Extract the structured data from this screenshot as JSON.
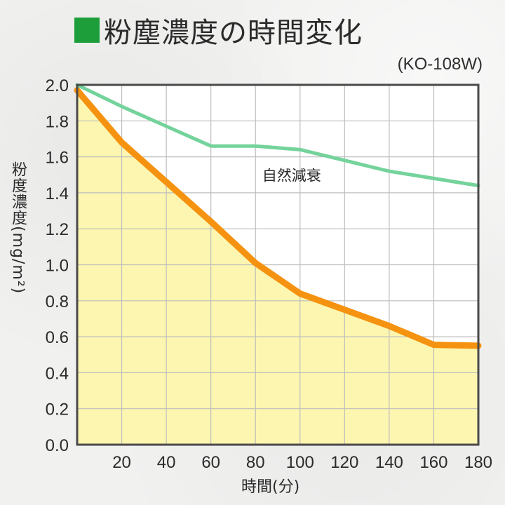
{
  "title": "粉塵濃度の時間変化",
  "model": "(KO-108W)",
  "colors": {
    "title_square": "#1e9e3a",
    "fill": "#fdf6b0",
    "product_line": "#f5920f",
    "natural_line": "#74d39b",
    "grid": "#bdbdbd",
    "frame": "#4a4a4a"
  },
  "chart_data": {
    "type": "line",
    "ylabel": "粉度濃度(mg/m²)",
    "xlabel": "時間(分)",
    "xlim": [
      0,
      180
    ],
    "ylim": [
      0,
      2.0
    ],
    "x_ticks": [
      "20",
      "40",
      "60",
      "80",
      "100",
      "120",
      "140",
      "160",
      "180"
    ],
    "y_ticks": [
      "0.0",
      "0.2",
      "0.4",
      "0.6",
      "0.8",
      "1.0",
      "1.2",
      "1.4",
      "1.6",
      "1.8",
      "2.0"
    ],
    "grid": true,
    "series": [
      {
        "name": "自然減衰",
        "color": "#74d39b",
        "x": [
          0,
          20,
          40,
          60,
          80,
          100,
          120,
          140,
          160,
          180
        ],
        "values": [
          2.0,
          1.88,
          1.77,
          1.66,
          1.66,
          1.64,
          1.58,
          1.52,
          1.48,
          1.44
        ]
      },
      {
        "name": "",
        "color": "#f5920f",
        "x": [
          0,
          20,
          40,
          60,
          80,
          100,
          120,
          140,
          160,
          180
        ],
        "values": [
          1.97,
          1.68,
          1.46,
          1.24,
          1.01,
          0.84,
          0.75,
          0.66,
          0.555,
          0.55
        ]
      }
    ]
  }
}
